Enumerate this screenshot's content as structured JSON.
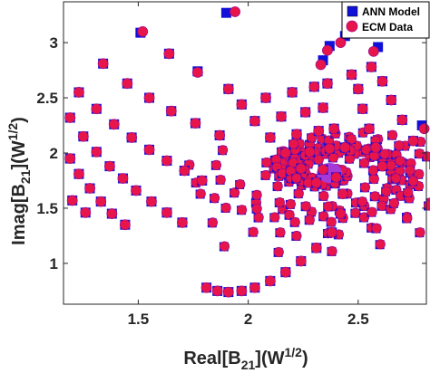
{
  "chart_data": {
    "type": "scatter",
    "xlim": [
      1.16,
      2.81
    ],
    "ylim": [
      0.63,
      3.37
    ],
    "xticks": [
      "1.5",
      "2",
      "2.5"
    ],
    "yticks": [
      "1",
      "1.5",
      "2",
      "2.5",
      "3"
    ],
    "xlabel": {
      "main": "Real[B",
      "sub": "21",
      "mid": "](W",
      "sup": "1/2",
      "end": ")"
    },
    "ylabel": {
      "main": "Imag[B",
      "sub": "21",
      "mid": "](W",
      "sup": "1/2",
      "end": ")"
    },
    "legend": {
      "position": "top-right"
    },
    "series": [
      {
        "name": "ANN Model",
        "marker": "square",
        "color": "#1010d8",
        "points": [
          [
            1.9,
            3.27
          ],
          [
            1.51,
            3.09
          ],
          [
            1.64,
            2.9
          ],
          [
            1.77,
            2.74
          ],
          [
            1.91,
            2.58
          ],
          [
            1.34,
            2.81
          ],
          [
            1.45,
            2.63
          ],
          [
            1.55,
            2.5
          ],
          [
            1.65,
            2.38
          ],
          [
            1.76,
            2.27
          ],
          [
            1.87,
            2.16
          ],
          [
            1.23,
            2.55
          ],
          [
            1.31,
            2.4
          ],
          [
            1.39,
            2.26
          ],
          [
            1.47,
            2.14
          ],
          [
            1.55,
            2.03
          ],
          [
            1.63,
            1.93
          ],
          [
            1.71,
            1.84
          ],
          [
            1.79,
            1.75
          ],
          [
            1.19,
            2.32
          ],
          [
            1.25,
            2.15
          ],
          [
            1.31,
            2.01
          ],
          [
            1.37,
            1.88
          ],
          [
            1.43,
            1.77
          ],
          [
            1.49,
            1.66
          ],
          [
            1.56,
            1.56
          ],
          [
            1.63,
            1.46
          ],
          [
            1.7,
            1.37
          ],
          [
            1.19,
            1.95
          ],
          [
            1.23,
            1.81
          ],
          [
            1.28,
            1.68
          ],
          [
            1.33,
            1.56
          ],
          [
            1.38,
            1.45
          ],
          [
            1.44,
            1.35
          ],
          [
            1.2,
            1.57
          ],
          [
            1.26,
            1.46
          ],
          [
            2.34,
            2.84
          ],
          [
            2.37,
            2.97
          ],
          [
            2.44,
            3.06
          ],
          [
            2.59,
            2.96
          ],
          [
            2.79,
            2.25
          ],
          [
            2.36,
            2.63
          ],
          [
            2.47,
            2.71
          ],
          [
            2.56,
            2.78
          ],
          [
            2.61,
            2.65
          ],
          [
            2.65,
            2.48
          ],
          [
            2.7,
            2.3
          ],
          [
            2.75,
            2.11
          ],
          [
            1.97,
            2.44
          ],
          [
            2.03,
            2.29
          ],
          [
            2.1,
            2.14
          ],
          [
            2.17,
            2.0
          ],
          [
            2.24,
            1.86
          ],
          [
            2.31,
            1.73
          ],
          [
            2.08,
            2.5
          ],
          [
            2.15,
            2.33
          ],
          [
            2.22,
            2.17
          ],
          [
            2.28,
            2.01
          ],
          [
            2.34,
            1.85
          ],
          [
            2.2,
            2.55
          ],
          [
            2.26,
            2.37
          ],
          [
            2.32,
            2.2
          ],
          [
            2.37,
            2.04
          ],
          [
            2.3,
            2.6
          ],
          [
            2.34,
            2.41
          ],
          [
            2.39,
            2.22
          ],
          [
            2.44,
            2.05
          ],
          [
            2.5,
            2.58
          ],
          [
            2.52,
            2.4
          ],
          [
            2.55,
            2.22
          ],
          [
            2.58,
            2.05
          ],
          [
            2.61,
            1.88
          ],
          [
            1.81,
            0.78
          ],
          [
            1.86,
            0.75
          ],
          [
            1.91,
            0.74
          ],
          [
            1.97,
            0.75
          ],
          [
            2.03,
            0.78
          ],
          [
            2.1,
            0.84
          ],
          [
            2.17,
            0.92
          ],
          [
            2.24,
            1.02
          ],
          [
            2.31,
            1.14
          ],
          [
            2.38,
            1.28
          ],
          [
            2.42,
            1.45
          ],
          [
            2.43,
            1.63
          ],
          [
            2.4,
            1.78
          ]
        ]
      },
      {
        "name": "ECM Data",
        "marker": "circle",
        "color": "#e8154a",
        "points": [
          [
            1.94,
            3.28
          ],
          [
            1.52,
            3.1
          ],
          [
            1.64,
            2.9
          ],
          [
            1.77,
            2.73
          ],
          [
            1.91,
            2.58
          ],
          [
            1.34,
            2.81
          ],
          [
            1.45,
            2.63
          ],
          [
            1.55,
            2.5
          ],
          [
            1.65,
            2.38
          ],
          [
            1.76,
            2.27
          ],
          [
            1.87,
            2.16
          ],
          [
            1.23,
            2.55
          ],
          [
            1.31,
            2.4
          ],
          [
            1.39,
            2.26
          ],
          [
            1.47,
            2.14
          ],
          [
            1.55,
            2.03
          ],
          [
            1.63,
            1.93
          ],
          [
            1.71,
            1.84
          ],
          [
            1.79,
            1.75
          ],
          [
            1.19,
            2.32
          ],
          [
            1.25,
            2.15
          ],
          [
            1.31,
            2.01
          ],
          [
            1.37,
            1.88
          ],
          [
            1.43,
            1.77
          ],
          [
            1.49,
            1.66
          ],
          [
            1.56,
            1.56
          ],
          [
            1.63,
            1.46
          ],
          [
            1.7,
            1.37
          ],
          [
            1.19,
            1.95
          ],
          [
            1.23,
            1.81
          ],
          [
            1.28,
            1.68
          ],
          [
            1.33,
            1.56
          ],
          [
            1.38,
            1.45
          ],
          [
            1.44,
            1.35
          ],
          [
            1.2,
            1.57
          ],
          [
            1.26,
            1.46
          ],
          [
            2.33,
            2.8
          ],
          [
            2.36,
            2.93
          ],
          [
            2.42,
            3.0
          ],
          [
            2.57,
            2.92
          ],
          [
            2.8,
            2.22
          ],
          [
            2.36,
            2.63
          ],
          [
            2.47,
            2.71
          ],
          [
            2.56,
            2.78
          ],
          [
            2.61,
            2.65
          ],
          [
            2.65,
            2.48
          ],
          [
            2.7,
            2.3
          ],
          [
            2.75,
            2.11
          ],
          [
            1.97,
            2.44
          ],
          [
            2.03,
            2.29
          ],
          [
            2.1,
            2.14
          ],
          [
            2.17,
            2.0
          ],
          [
            2.24,
            1.86
          ],
          [
            2.31,
            1.73
          ],
          [
            2.08,
            2.5
          ],
          [
            2.15,
            2.33
          ],
          [
            2.22,
            2.17
          ],
          [
            2.28,
            2.01
          ],
          [
            2.34,
            1.85
          ],
          [
            2.2,
            2.55
          ],
          [
            2.26,
            2.37
          ],
          [
            2.32,
            2.2
          ],
          [
            2.37,
            2.04
          ],
          [
            2.3,
            2.6
          ],
          [
            2.34,
            2.41
          ],
          [
            2.39,
            2.22
          ],
          [
            2.44,
            2.05
          ],
          [
            2.5,
            2.58
          ],
          [
            2.52,
            2.4
          ],
          [
            2.55,
            2.22
          ],
          [
            2.58,
            2.05
          ],
          [
            2.61,
            1.88
          ],
          [
            1.81,
            0.78
          ],
          [
            1.86,
            0.75
          ],
          [
            1.91,
            0.74
          ],
          [
            1.97,
            0.75
          ],
          [
            2.03,
            0.78
          ],
          [
            2.1,
            0.84
          ],
          [
            2.17,
            0.92
          ],
          [
            2.24,
            1.02
          ],
          [
            2.31,
            1.14
          ],
          [
            2.38,
            1.28
          ],
          [
            2.42,
            1.45
          ],
          [
            2.43,
            1.63
          ],
          [
            2.4,
            1.78
          ]
        ]
      }
    ],
    "dense_region": {
      "center": [
        2.37,
        1.82
      ],
      "spirals": [
        {
          "start": [
            1.9,
            2.05
          ],
          "turns": 1.6,
          "count": 34
        },
        {
          "start": [
            1.98,
            1.7
          ],
          "turns": 1.5,
          "count": 30
        },
        {
          "start": [
            2.05,
            1.45
          ],
          "turns": 1.5,
          "count": 30
        },
        {
          "start": [
            2.15,
            1.2
          ],
          "turns": 1.4,
          "count": 28
        },
        {
          "start": [
            1.8,
            1.6
          ],
          "turns": 1.4,
          "count": 30
        },
        {
          "start": [
            1.85,
            1.3
          ],
          "turns": 1.3,
          "count": 30
        },
        {
          "start": [
            1.9,
            1.05
          ],
          "turns": 1.2,
          "count": 28
        },
        {
          "start": [
            1.75,
            1.9
          ],
          "turns": 1.4,
          "count": 30
        },
        {
          "start": [
            2.1,
            1.92
          ],
          "turns": 1.8,
          "count": 26
        },
        {
          "start": [
            2.2,
            1.5
          ],
          "turns": 1.7,
          "count": 24
        }
      ]
    }
  }
}
